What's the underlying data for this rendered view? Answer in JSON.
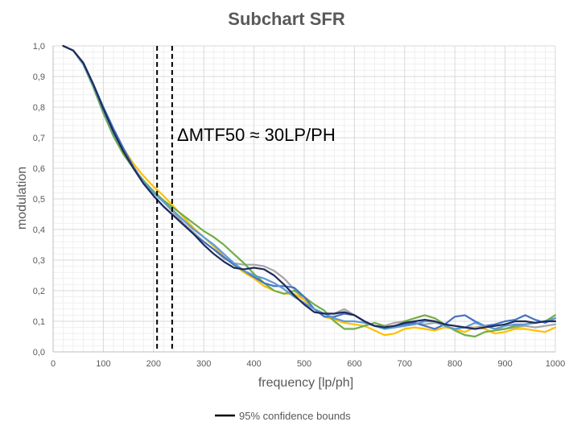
{
  "colors": {
    "grid_major": "#d9d9d9",
    "grid_minor": "#efefef",
    "axis": "#bfbfbf",
    "bounds": "#000000"
  },
  "chart_data": {
    "type": "line",
    "title": "Subchart SFR",
    "xlabel": "frequency [lp/ph]",
    "ylabel": "modulation",
    "xlim": [
      0,
      1000
    ],
    "ylim": [
      0,
      1
    ],
    "x_ticks": [
      "0",
      "100",
      "200",
      "300",
      "400",
      "500",
      "600",
      "700",
      "800",
      "900",
      "1000"
    ],
    "y_ticks": [
      "0,0",
      "0,1",
      "0,2",
      "0,3",
      "0,4",
      "0,5",
      "0,6",
      "0,7",
      "0,8",
      "0,9",
      "1,0"
    ],
    "grid": true,
    "legend": {
      "position": "bottom",
      "entries": [
        {
          "label": "95% confidence bounds",
          "color": "#000000"
        }
      ]
    },
    "annotation": "ΔMTF50 ≈ 30LP/PH",
    "vlines": [
      207,
      237
    ],
    "series": [
      {
        "color": "#a6a6a6",
        "x": [
          20,
          40,
          60,
          80,
          100,
          120,
          140,
          160,
          180,
          200,
          220,
          240,
          260,
          280,
          300,
          320,
          340,
          360,
          380,
          400,
          420,
          440,
          460,
          480,
          500,
          520,
          540,
          560,
          580,
          600,
          620,
          640,
          660,
          680,
          700,
          720,
          740,
          760,
          780,
          800,
          820,
          840,
          860,
          880,
          900,
          920,
          940,
          960,
          980,
          1000
        ],
        "y": [
          1.0,
          0.985,
          0.945,
          0.875,
          0.795,
          0.72,
          0.655,
          0.6,
          0.555,
          0.52,
          0.49,
          0.455,
          0.42,
          0.39,
          0.36,
          0.335,
          0.305,
          0.29,
          0.285,
          0.285,
          0.28,
          0.265,
          0.24,
          0.205,
          0.17,
          0.14,
          0.125,
          0.125,
          0.14,
          0.12,
          0.1,
          0.085,
          0.085,
          0.095,
          0.1,
          0.095,
          0.09,
          0.095,
          0.09,
          0.085,
          0.08,
          0.08,
          0.085,
          0.075,
          0.075,
          0.08,
          0.085,
          0.08,
          0.085,
          0.09
        ]
      },
      {
        "color": "#ffc000",
        "x": [
          20,
          40,
          60,
          80,
          100,
          120,
          140,
          160,
          180,
          200,
          220,
          240,
          260,
          280,
          300,
          320,
          340,
          360,
          380,
          400,
          420,
          440,
          460,
          480,
          500,
          520,
          540,
          560,
          580,
          600,
          620,
          640,
          660,
          680,
          700,
          720,
          740,
          760,
          780,
          800,
          820,
          840,
          860,
          880,
          900,
          920,
          940,
          960,
          980,
          1000
        ],
        "y": [
          1.0,
          0.985,
          0.945,
          0.87,
          0.79,
          0.72,
          0.665,
          0.615,
          0.575,
          0.54,
          0.51,
          0.475,
          0.44,
          0.405,
          0.375,
          0.345,
          0.31,
          0.285,
          0.26,
          0.24,
          0.215,
          0.2,
          0.19,
          0.19,
          0.17,
          0.14,
          0.115,
          0.105,
          0.095,
          0.09,
          0.085,
          0.07,
          0.055,
          0.06,
          0.075,
          0.08,
          0.075,
          0.07,
          0.08,
          0.075,
          0.065,
          0.08,
          0.075,
          0.06,
          0.065,
          0.075,
          0.075,
          0.07,
          0.065,
          0.08
        ]
      },
      {
        "color": "#70ad47",
        "x": [
          20,
          40,
          60,
          80,
          100,
          120,
          140,
          160,
          180,
          200,
          220,
          240,
          260,
          280,
          300,
          320,
          340,
          360,
          380,
          400,
          420,
          440,
          460,
          480,
          500,
          520,
          540,
          560,
          580,
          600,
          620,
          640,
          660,
          680,
          700,
          720,
          740,
          760,
          780,
          800,
          820,
          840,
          860,
          880,
          900,
          920,
          940,
          960,
          980,
          1000
        ],
        "y": [
          1.0,
          0.985,
          0.94,
          0.865,
          0.78,
          0.705,
          0.645,
          0.6,
          0.56,
          0.525,
          0.495,
          0.47,
          0.445,
          0.42,
          0.395,
          0.375,
          0.35,
          0.32,
          0.29,
          0.255,
          0.225,
          0.2,
          0.19,
          0.2,
          0.18,
          0.155,
          0.135,
          0.1,
          0.075,
          0.075,
          0.085,
          0.095,
          0.085,
          0.08,
          0.1,
          0.11,
          0.12,
          0.11,
          0.09,
          0.07,
          0.055,
          0.05,
          0.065,
          0.07,
          0.075,
          0.085,
          0.09,
          0.095,
          0.1,
          0.12
        ]
      },
      {
        "color": "#4472c4",
        "x": [
          20,
          40,
          60,
          80,
          100,
          120,
          140,
          160,
          180,
          200,
          220,
          240,
          260,
          280,
          300,
          320,
          340,
          360,
          380,
          400,
          420,
          440,
          460,
          480,
          500,
          520,
          540,
          560,
          580,
          600,
          620,
          640,
          660,
          680,
          700,
          720,
          740,
          760,
          780,
          800,
          820,
          840,
          860,
          880,
          900,
          920,
          940,
          960,
          980,
          1000
        ],
        "y": [
          1.0,
          0.985,
          0.945,
          0.875,
          0.8,
          0.73,
          0.665,
          0.605,
          0.555,
          0.51,
          0.475,
          0.445,
          0.415,
          0.385,
          0.36,
          0.335,
          0.31,
          0.285,
          0.265,
          0.245,
          0.225,
          0.215,
          0.215,
          0.21,
          0.18,
          0.14,
          0.115,
          0.115,
          0.125,
          0.12,
          0.1,
          0.085,
          0.08,
          0.085,
          0.09,
          0.095,
          0.085,
          0.075,
          0.09,
          0.115,
          0.12,
          0.1,
          0.085,
          0.09,
          0.1,
          0.105,
          0.12,
          0.105,
          0.095,
          0.11
        ]
      },
      {
        "color": "#5b9bd5",
        "x": [
          20,
          40,
          60,
          80,
          100,
          120,
          140,
          160,
          180,
          200,
          220,
          240,
          260,
          280,
          300,
          320,
          340,
          360,
          380,
          400,
          420,
          440,
          460,
          480,
          500,
          520,
          540,
          560,
          580,
          600,
          620,
          640,
          660,
          680,
          700,
          720,
          740,
          760,
          780,
          800,
          820,
          840,
          860,
          880,
          900,
          920,
          940,
          960,
          980,
          1000
        ],
        "y": [
          1.0,
          0.985,
          0.94,
          0.87,
          0.79,
          0.715,
          0.655,
          0.6,
          0.555,
          0.52,
          0.49,
          0.46,
          0.43,
          0.4,
          0.375,
          0.35,
          0.32,
          0.29,
          0.265,
          0.25,
          0.24,
          0.225,
          0.205,
          0.18,
          0.16,
          0.14,
          0.125,
          0.11,
          0.1,
          0.1,
          0.095,
          0.085,
          0.075,
          0.08,
          0.085,
          0.09,
          0.1,
          0.1,
          0.085,
          0.075,
          0.08,
          0.095,
          0.085,
          0.075,
          0.085,
          0.09,
          0.09,
          0.095,
          0.1,
          0.11
        ]
      },
      {
        "color": "#1f2b5a",
        "x": [
          20,
          40,
          60,
          80,
          100,
          120,
          140,
          160,
          180,
          200,
          220,
          240,
          260,
          280,
          300,
          320,
          340,
          360,
          380,
          400,
          420,
          440,
          460,
          480,
          500,
          520,
          540,
          560,
          580,
          600,
          620,
          640,
          660,
          680,
          700,
          720,
          740,
          760,
          780,
          800,
          820,
          840,
          860,
          880,
          900,
          920,
          940,
          960,
          980,
          1000
        ],
        "y": [
          1.0,
          0.985,
          0.945,
          0.875,
          0.795,
          0.72,
          0.655,
          0.6,
          0.55,
          0.51,
          0.475,
          0.445,
          0.415,
          0.385,
          0.35,
          0.32,
          0.295,
          0.275,
          0.27,
          0.275,
          0.27,
          0.25,
          0.22,
          0.185,
          0.155,
          0.13,
          0.125,
          0.125,
          0.13,
          0.12,
          0.1,
          0.085,
          0.08,
          0.085,
          0.095,
          0.1,
          0.105,
          0.1,
          0.09,
          0.085,
          0.08,
          0.075,
          0.08,
          0.085,
          0.09,
          0.1,
          0.1,
          0.095,
          0.1,
          0.1
        ]
      }
    ]
  }
}
